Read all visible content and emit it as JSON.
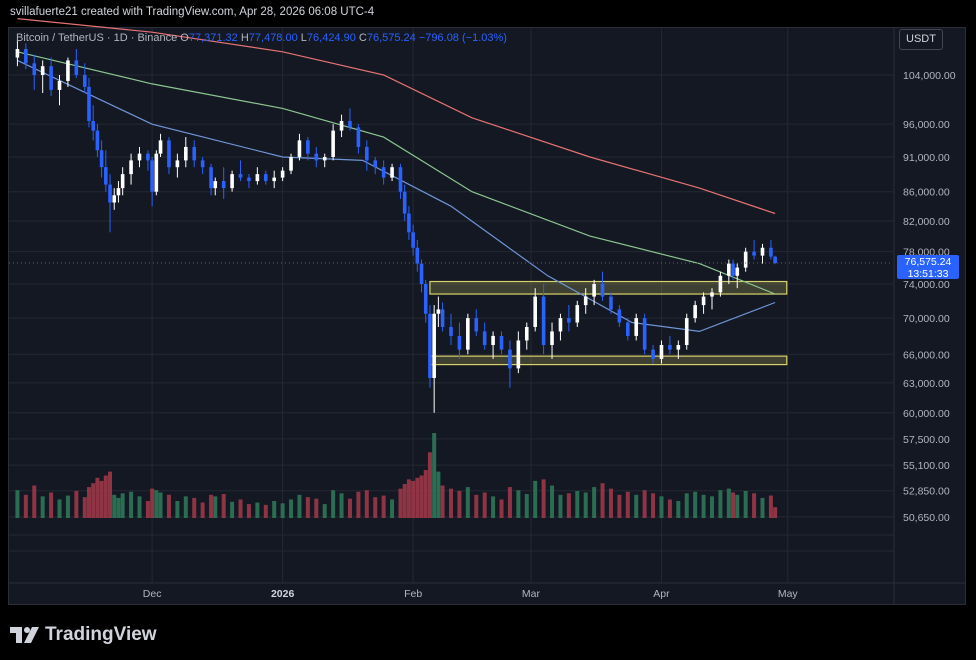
{
  "header": {
    "attribution": "svillafuerte21 created with TradingView.com, Apr 28, 2026 06:08 UTC-4"
  },
  "legend": {
    "symbol": "Bitcoin / TetherUS · 1D · Binance",
    "open_label": "O",
    "open": "77,371.32",
    "high_label": "H",
    "high": "77,478.00",
    "low_label": "L",
    "low": "76,424.90",
    "close_label": "C",
    "close": "76,575.24",
    "change": "−796.08 (−1.03%)"
  },
  "currency": "USDT",
  "price_tag": {
    "price": "76,575.24",
    "countdown": "13:51:33"
  },
  "logo_text": "TradingView",
  "colors": {
    "up": "#ffffff",
    "down": "#2962ff",
    "vol_up": "#2e7d5b",
    "vol_down": "#a33a4a",
    "ma_long": "#e57373",
    "ma_mid": "#8bc58f",
    "ma_short": "#6f95d8",
    "range_box": "#d8d26a",
    "background": "#141823"
  },
  "chart_data": {
    "type": "candlestick",
    "y_axis_scale": "log",
    "price_ticks": [
      "104,000.00",
      "96,000.00",
      "91,000.00",
      "86,000.00",
      "82,000.00",
      "78,000.00",
      "74,000.00",
      "70,000.00",
      "66,000.00",
      "63,000.00",
      "60,000.00",
      "57,500.00",
      "55,100.00",
      "52,850.00",
      "50,650.00"
    ],
    "price_tick_values": [
      104000,
      96000,
      91000,
      86000,
      82000,
      78000,
      74000,
      70000,
      66000,
      63000,
      60000,
      57500,
      55100,
      52850,
      50650
    ],
    "x_labels": [
      "Dec",
      "2026",
      "Feb",
      "Mar",
      "Apr",
      "May"
    ],
    "x_label_dates": [
      "2025-12-01",
      "2026-01-01",
      "2026-02-01",
      "2026-03-01",
      "2026-04-01",
      "2026-05-01"
    ],
    "ranges": [
      {
        "name": "resistance-zone",
        "start": "2026-02-05",
        "end": "2026-05-01",
        "low": 72800,
        "high": 74300
      },
      {
        "name": "support-zone",
        "start": "2026-02-05",
        "end": "2026-05-01",
        "low": 64900,
        "high": 65800
      }
    ],
    "moving_averages": [
      {
        "name": "ma-long",
        "points": [
          [
            "2025-10-30",
            114000
          ],
          [
            "2025-12-01",
            111500
          ],
          [
            "2026-01-01",
            108000
          ],
          [
            "2026-01-25",
            104000
          ],
          [
            "2026-02-15",
            97000
          ],
          [
            "2026-03-15",
            91000
          ],
          [
            "2026-04-10",
            86500
          ],
          [
            "2026-04-28",
            83000
          ]
        ]
      },
      {
        "name": "ma-mid",
        "points": [
          [
            "2025-10-30",
            108000
          ],
          [
            "2025-12-01",
            102500
          ],
          [
            "2026-01-01",
            98500
          ],
          [
            "2026-01-25",
            94000
          ],
          [
            "2026-02-15",
            86000
          ],
          [
            "2026-03-15",
            80000
          ],
          [
            "2026-04-10",
            76500
          ],
          [
            "2026-04-28",
            72800
          ]
        ]
      },
      {
        "name": "ma-short",
        "points": [
          [
            "2025-10-30",
            106500
          ],
          [
            "2025-12-01",
            96000
          ],
          [
            "2026-01-01",
            91000
          ],
          [
            "2026-01-20",
            90500
          ],
          [
            "2026-02-10",
            84000
          ],
          [
            "2026-03-05",
            75000
          ],
          [
            "2026-03-25",
            69500
          ],
          [
            "2026-04-10",
            68500
          ],
          [
            "2026-04-28",
            71800
          ]
        ]
      }
    ],
    "candles": [
      [
        "2025-10-30",
        107000,
        110000,
        105500,
        108500,
        36000
      ],
      [
        "2025-11-01",
        108500,
        109500,
        105000,
        106000,
        30000
      ],
      [
        "2025-11-03",
        106000,
        107500,
        101500,
        104000,
        42000
      ],
      [
        "2025-11-05",
        104000,
        106500,
        101000,
        105500,
        28000
      ],
      [
        "2025-11-07",
        105500,
        107000,
        100500,
        101500,
        33000
      ],
      [
        "2025-11-09",
        101500,
        104000,
        99000,
        103000,
        24000
      ],
      [
        "2025-11-11",
        103000,
        107000,
        102000,
        106500,
        29000
      ],
      [
        "2025-11-13",
        106500,
        108500,
        103500,
        104000,
        35000
      ],
      [
        "2025-11-15",
        104000,
        106000,
        101000,
        102000,
        27000
      ],
      [
        "2025-11-16",
        102000,
        103500,
        95500,
        96500,
        40000
      ],
      [
        "2025-11-17",
        96500,
        99000,
        93500,
        95000,
        45000
      ],
      [
        "2025-11-18",
        95000,
        96000,
        91000,
        92000,
        52000
      ],
      [
        "2025-11-19",
        92000,
        93500,
        88000,
        89500,
        48000
      ],
      [
        "2025-11-20",
        89500,
        92000,
        86000,
        87000,
        55000
      ],
      [
        "2025-11-21",
        87000,
        88500,
        80500,
        84500,
        60000
      ],
      [
        "2025-11-22",
        84500,
        86500,
        83500,
        85500,
        30000
      ],
      [
        "2025-11-23",
        85500,
        87500,
        84500,
        86500,
        26000
      ],
      [
        "2025-11-24",
        86500,
        89500,
        85500,
        88500,
        32000
      ],
      [
        "2025-11-26",
        88500,
        91500,
        87000,
        90500,
        34000
      ],
      [
        "2025-11-28",
        90500,
        92500,
        89500,
        91500,
        28000
      ],
      [
        "2025-11-30",
        91500,
        92000,
        89000,
        90500,
        22000
      ],
      [
        "2025-12-01",
        90500,
        91000,
        84000,
        86000,
        38000
      ],
      [
        "2025-12-02",
        86000,
        92000,
        85500,
        91500,
        36000
      ],
      [
        "2025-12-03",
        91500,
        94500,
        91000,
        93500,
        33000
      ],
      [
        "2025-12-05",
        93500,
        94000,
        88500,
        89500,
        30000
      ],
      [
        "2025-12-07",
        89500,
        91500,
        88000,
        90500,
        22000
      ],
      [
        "2025-12-09",
        90500,
        94000,
        89500,
        92500,
        28000
      ],
      [
        "2025-12-11",
        92500,
        93500,
        89500,
        90500,
        26000
      ],
      [
        "2025-12-13",
        90500,
        91000,
        88500,
        89500,
        20000
      ],
      [
        "2025-12-15",
        89500,
        90000,
        85500,
        86500,
        30000
      ],
      [
        "2025-12-16",
        86500,
        88000,
        85500,
        87500,
        28000
      ],
      [
        "2025-12-18",
        87500,
        89500,
        85000,
        86500,
        31000
      ],
      [
        "2025-12-20",
        86500,
        89000,
        86000,
        88500,
        21000
      ],
      [
        "2025-12-22",
        88500,
        90500,
        87500,
        88000,
        24000
      ],
      [
        "2025-12-24",
        88000,
        88500,
        86500,
        87500,
        18000
      ],
      [
        "2025-12-26",
        87500,
        89500,
        87000,
        88500,
        20000
      ],
      [
        "2025-12-28",
        88500,
        89000,
        87000,
        87500,
        17000
      ],
      [
        "2025-12-30",
        87500,
        89000,
        86500,
        88000,
        22000
      ],
      [
        "2026-01-01",
        88000,
        89500,
        87500,
        89000,
        19000
      ],
      [
        "2026-01-03",
        89000,
        91500,
        88500,
        91000,
        24000
      ],
      [
        "2026-01-05",
        91000,
        94500,
        90500,
        93500,
        30000
      ],
      [
        "2026-01-07",
        93500,
        94000,
        90500,
        91500,
        27000
      ],
      [
        "2026-01-09",
        91500,
        92500,
        89500,
        90500,
        25000
      ],
      [
        "2026-01-11",
        90500,
        91500,
        89500,
        91000,
        18000
      ],
      [
        "2026-01-13",
        91000,
        96000,
        90500,
        95000,
        36000
      ],
      [
        "2026-01-15",
        95000,
        97500,
        94000,
        96500,
        32000
      ],
      [
        "2026-01-17",
        96500,
        98500,
        95000,
        95500,
        25000
      ],
      [
        "2026-01-19",
        95500,
        96000,
        91500,
        92500,
        34000
      ],
      [
        "2026-01-21",
        92500,
        93500,
        89000,
        90500,
        36000
      ],
      [
        "2026-01-23",
        90500,
        91000,
        88500,
        89500,
        27000
      ],
      [
        "2026-01-25",
        89500,
        90500,
        87000,
        88000,
        29000
      ],
      [
        "2026-01-27",
        88000,
        90000,
        87500,
        89500,
        24000
      ],
      [
        "2026-01-29",
        89500,
        90000,
        85000,
        86000,
        38000
      ],
      [
        "2026-01-30",
        86000,
        87000,
        82000,
        83000,
        44000
      ],
      [
        "2026-01-31",
        83000,
        84000,
        79500,
        80500,
        50000
      ],
      [
        "2026-02-01",
        80500,
        81500,
        77500,
        78500,
        48000
      ],
      [
        "2026-02-02",
        78500,
        79500,
        75500,
        76500,
        52000
      ],
      [
        "2026-02-03",
        76500,
        77000,
        73000,
        74000,
        55000
      ],
      [
        "2026-02-04",
        74000,
        74500,
        69500,
        70500,
        62000
      ],
      [
        "2026-02-05",
        70500,
        71500,
        62500,
        63500,
        85000
      ],
      [
        "2026-02-06",
        63500,
        71500,
        60000,
        70500,
        110000
      ],
      [
        "2026-02-07",
        70500,
        72500,
        69000,
        71000,
        60000
      ],
      [
        "2026-02-08",
        71000,
        71800,
        68500,
        69000,
        42000
      ],
      [
        "2026-02-10",
        69000,
        70500,
        67000,
        68000,
        38000
      ],
      [
        "2026-02-12",
        68000,
        69500,
        65500,
        66500,
        35000
      ],
      [
        "2026-02-14",
        66500,
        70500,
        66000,
        70000,
        40000
      ],
      [
        "2026-02-16",
        70000,
        71000,
        68000,
        68500,
        30000
      ],
      [
        "2026-02-18",
        68500,
        69500,
        66500,
        67000,
        33000
      ],
      [
        "2026-02-20",
        67000,
        68500,
        65500,
        68000,
        28000
      ],
      [
        "2026-02-22",
        68000,
        68500,
        66000,
        66500,
        24000
      ],
      [
        "2026-02-24",
        66500,
        67500,
        62500,
        64500,
        40000
      ],
      [
        "2026-02-26",
        64500,
        68500,
        64000,
        67500,
        36000
      ],
      [
        "2026-02-28",
        67500,
        69500,
        66500,
        69000,
        31000
      ],
      [
        "2026-03-02",
        69000,
        73500,
        68500,
        72500,
        48000
      ],
      [
        "2026-03-04",
        72500,
        74000,
        66000,
        67000,
        50000
      ],
      [
        "2026-03-06",
        67000,
        69500,
        65500,
        68500,
        42000
      ],
      [
        "2026-03-08",
        68500,
        70500,
        67500,
        70000,
        30000
      ],
      [
        "2026-03-10",
        70000,
        71500,
        68500,
        69500,
        32000
      ],
      [
        "2026-03-12",
        69500,
        72000,
        69000,
        71500,
        35000
      ],
      [
        "2026-03-14",
        71500,
        73500,
        70500,
        72500,
        33000
      ],
      [
        "2026-03-16",
        72500,
        74500,
        71500,
        74000,
        40000
      ],
      [
        "2026-03-18",
        74000,
        75500,
        72000,
        72500,
        45000
      ],
      [
        "2026-03-20",
        72500,
        73000,
        70500,
        71000,
        38000
      ],
      [
        "2026-03-22",
        71000,
        71500,
        69000,
        69500,
        30000
      ],
      [
        "2026-03-24",
        69500,
        70000,
        67500,
        68000,
        34000
      ],
      [
        "2026-03-26",
        68000,
        70500,
        67500,
        70000,
        30000
      ],
      [
        "2026-03-28",
        70000,
        70500,
        66000,
        66500,
        36000
      ],
      [
        "2026-03-30",
        66500,
        67000,
        65000,
        65500,
        32000
      ],
      [
        "2026-04-01",
        65500,
        67500,
        65000,
        67000,
        28000
      ],
      [
        "2026-04-03",
        67000,
        68000,
        66000,
        66500,
        24000
      ],
      [
        "2026-04-05",
        66500,
        67500,
        65500,
        67000,
        22000
      ],
      [
        "2026-04-07",
        67000,
        70500,
        66500,
        70000,
        32000
      ],
      [
        "2026-04-09",
        70000,
        72000,
        69500,
        71500,
        34000
      ],
      [
        "2026-04-11",
        71500,
        73000,
        70500,
        72500,
        30000
      ],
      [
        "2026-04-13",
        72500,
        73500,
        71000,
        73000,
        28000
      ],
      [
        "2026-04-15",
        73000,
        75500,
        72500,
        75000,
        36000
      ],
      [
        "2026-04-17",
        75000,
        77000,
        74000,
        76500,
        38000
      ],
      [
        "2026-04-18",
        76500,
        77000,
        74500,
        75000,
        33000
      ],
      [
        "2026-04-19",
        75000,
        76500,
        73500,
        76000,
        30000
      ],
      [
        "2026-04-21",
        76000,
        78500,
        75500,
        78000,
        35000
      ],
      [
        "2026-04-23",
        78000,
        79500,
        77000,
        77500,
        32000
      ],
      [
        "2026-04-25",
        77500,
        79000,
        76500,
        78500,
        26000
      ],
      [
        "2026-04-27",
        78500,
        79500,
        77000,
        77371,
        29000
      ],
      [
        "2026-04-28",
        77371,
        77478,
        76425,
        76575,
        14000
      ]
    ]
  }
}
